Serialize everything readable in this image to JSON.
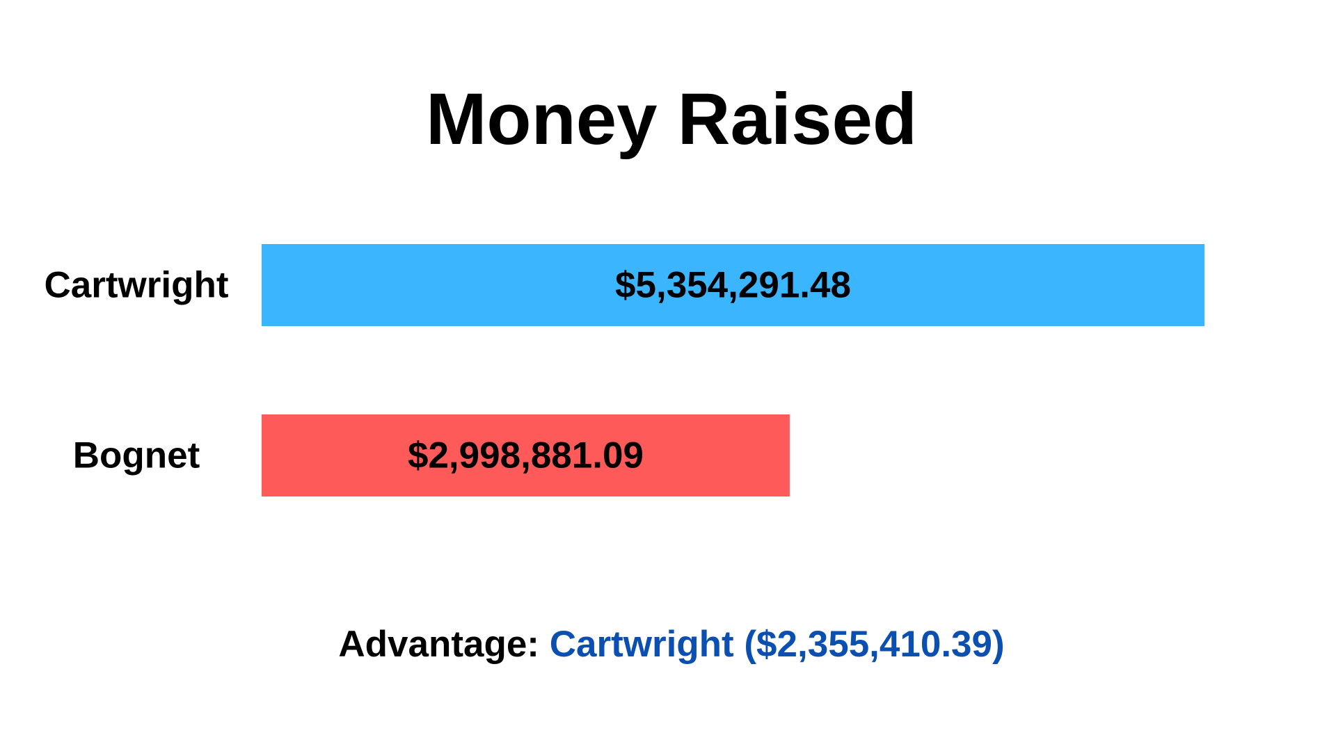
{
  "chart_data": {
    "type": "bar",
    "orientation": "horizontal",
    "title": "Money Raised",
    "categories": [
      "Cartwright",
      "Bognet"
    ],
    "values": [
      5354291.48,
      2998881.09
    ],
    "value_labels": [
      "$5,354,291.48",
      "$2,998,881.09"
    ],
    "colors": [
      "#3bb5fe",
      "#ff5a5a"
    ],
    "xlim": [
      0,
      5354291.48
    ],
    "grid": false,
    "legend": "none"
  },
  "footer": {
    "prefix": "Advantage:",
    "leader_text": "Cartwright ($2,355,410.39)",
    "leader_color": "#0b4fb0"
  }
}
